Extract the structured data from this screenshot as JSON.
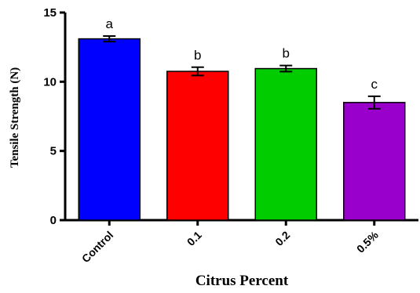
{
  "chart_data": {
    "type": "bar",
    "title": "",
    "xlabel": "Citrus Percent",
    "ylabel": "Tensile Strength (N)",
    "ylim": [
      0,
      15
    ],
    "yticks": [
      "0",
      "5",
      "10",
      "15"
    ],
    "categories": [
      "Control",
      "0.1",
      "0.2",
      "0.5%"
    ],
    "values": [
      13.1,
      10.75,
      10.95,
      8.5
    ],
    "errors": [
      0.2,
      0.3,
      0.22,
      0.45
    ],
    "significance": [
      "a",
      "b",
      "b",
      "c"
    ],
    "colors": [
      "#0000ff",
      "#ff0000",
      "#00cc00",
      "#9900cc"
    ],
    "grid": false
  }
}
